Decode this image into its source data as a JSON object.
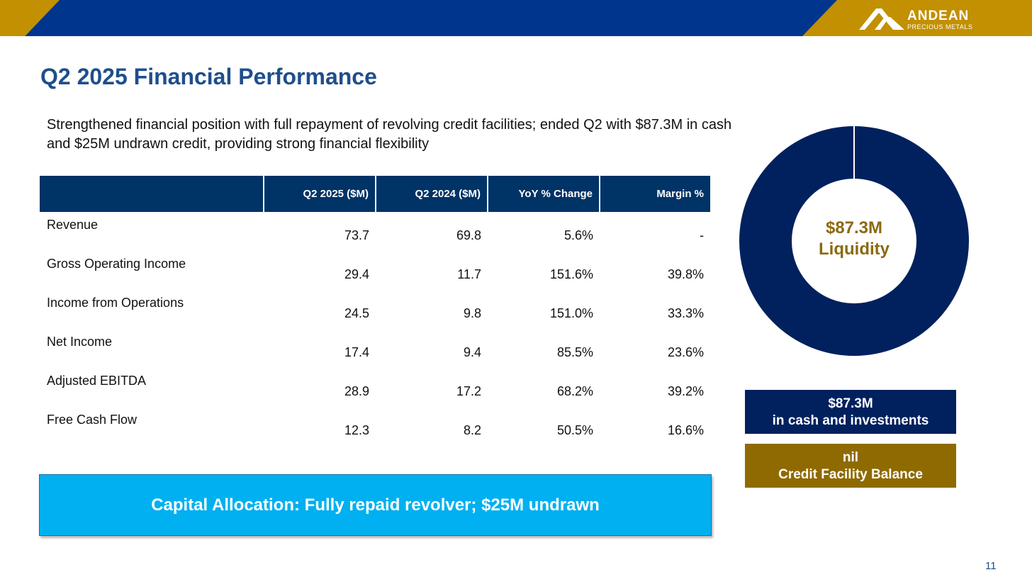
{
  "logo": {
    "name": "ANDEAN",
    "subtitle": "PRECIOUS METALS"
  },
  "title": "Q2 2025 Financial Performance",
  "subtitle": "Strengthened financial position with full repayment of revolving credit facilities; ended Q2 with $87.3M in cash and $25M undrawn credit, providing strong financial flexibility",
  "table": {
    "headers": [
      "",
      "Q2 2025 ($M)",
      "Q2 2024 ($M)",
      "YoY % Change",
      "Margin %"
    ],
    "rows": [
      [
        "Revenue",
        "73.7",
        "69.8",
        "5.6%",
        "-"
      ],
      [
        "Gross Operating Income",
        "29.4",
        "11.7",
        "151.6%",
        "39.8%"
      ],
      [
        "Income from Operations",
        "24.5",
        "9.8",
        "151.0%",
        "33.3%"
      ],
      [
        "Net Income",
        "17.4",
        "9.4",
        "85.5%",
        "23.6%"
      ],
      [
        "Adjusted EBITDA",
        "28.9",
        "17.2",
        "68.2%",
        "39.2%"
      ],
      [
        "Free Cash Flow",
        "12.3",
        "8.2",
        "50.5%",
        "16.6%"
      ]
    ]
  },
  "donut": {
    "value_label": "$87.3M",
    "label": "Liquidity",
    "cash_share": 1.0,
    "color": "#00215e"
  },
  "cash_box": {
    "line1": "$87.3M",
    "line2": "in cash and investments"
  },
  "credit_box": {
    "line1": "nil",
    "line2": "Credit Facility Balance"
  },
  "callout": "Capital Allocation: Fully repaid revolver; $25M undrawn",
  "page_number": "11"
}
